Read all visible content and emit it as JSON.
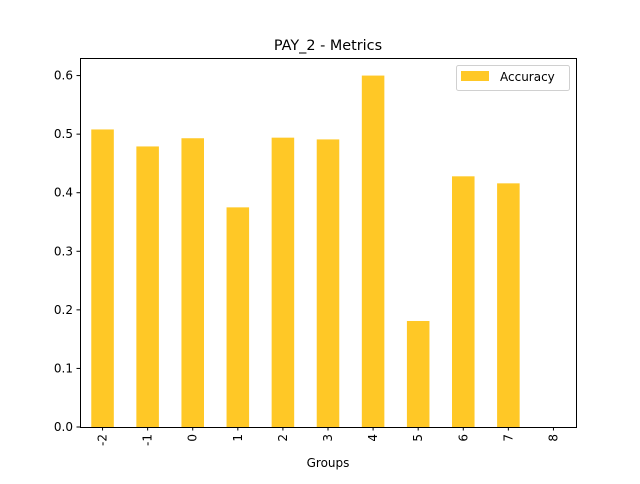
{
  "chart_data": {
    "type": "bar",
    "title": "PAY_2 - Metrics",
    "xlabel": "Groups",
    "ylabel": "",
    "categories": [
      "-2",
      "-1",
      "0",
      "1",
      "2",
      "3",
      "4",
      "5",
      "6",
      "7",
      "8"
    ],
    "series": [
      {
        "name": "Accuracy",
        "color": "#ffc826",
        "values": [
          0.508,
          0.479,
          0.493,
          0.375,
          0.494,
          0.491,
          0.6,
          0.181,
          0.428,
          0.416,
          0.0
        ]
      }
    ],
    "ylim": [
      0,
      0.63
    ],
    "yticks": [
      "0.0",
      "0.1",
      "0.2",
      "0.3",
      "0.4",
      "0.5",
      "0.6"
    ],
    "grid": false,
    "legend": "top-right"
  }
}
